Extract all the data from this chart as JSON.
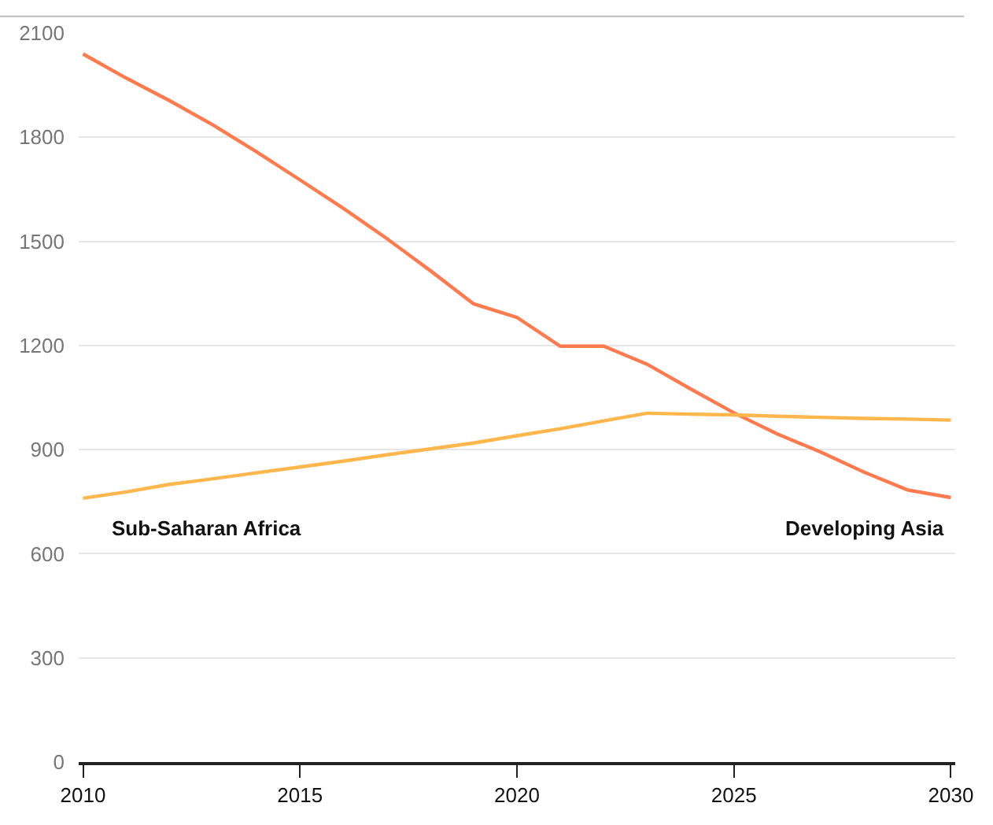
{
  "chart_data": {
    "type": "line",
    "x": [
      2010,
      2011,
      2012,
      2013,
      2014,
      2015,
      2016,
      2017,
      2018,
      2019,
      2020,
      2021,
      2022,
      2023,
      2024,
      2025,
      2026,
      2027,
      2028,
      2029,
      2030
    ],
    "series": [
      {
        "name": "Developing Asia",
        "color": "#ff7a4d",
        "values": [
          2040,
          1970,
          1905,
          1835,
          1758,
          1677,
          1595,
          1508,
          1416,
          1320,
          1281,
          1198,
          1198,
          1146,
          1075,
          1006,
          945,
          893,
          835,
          784,
          762
        ]
      },
      {
        "name": "Sub-Saharan Africa",
        "color": "#ffb74d",
        "values": [
          760,
          778,
          800,
          816,
          833,
          850,
          867,
          885,
          902,
          919,
          940,
          960,
          983,
          1005,
          1002,
          1000,
          996,
          993,
          990,
          988,
          985
        ]
      }
    ],
    "xlim": [
      2009.9,
      2030.1
    ],
    "xticks": [
      2010,
      2015,
      2020,
      2025,
      2030
    ],
    "ylim": [
      0,
      2100
    ],
    "yticks": [
      0,
      300,
      600,
      900,
      1200,
      1500,
      1800,
      2100
    ],
    "grid": "y",
    "legend": false,
    "marker": "none",
    "line_style": "solid"
  }
}
